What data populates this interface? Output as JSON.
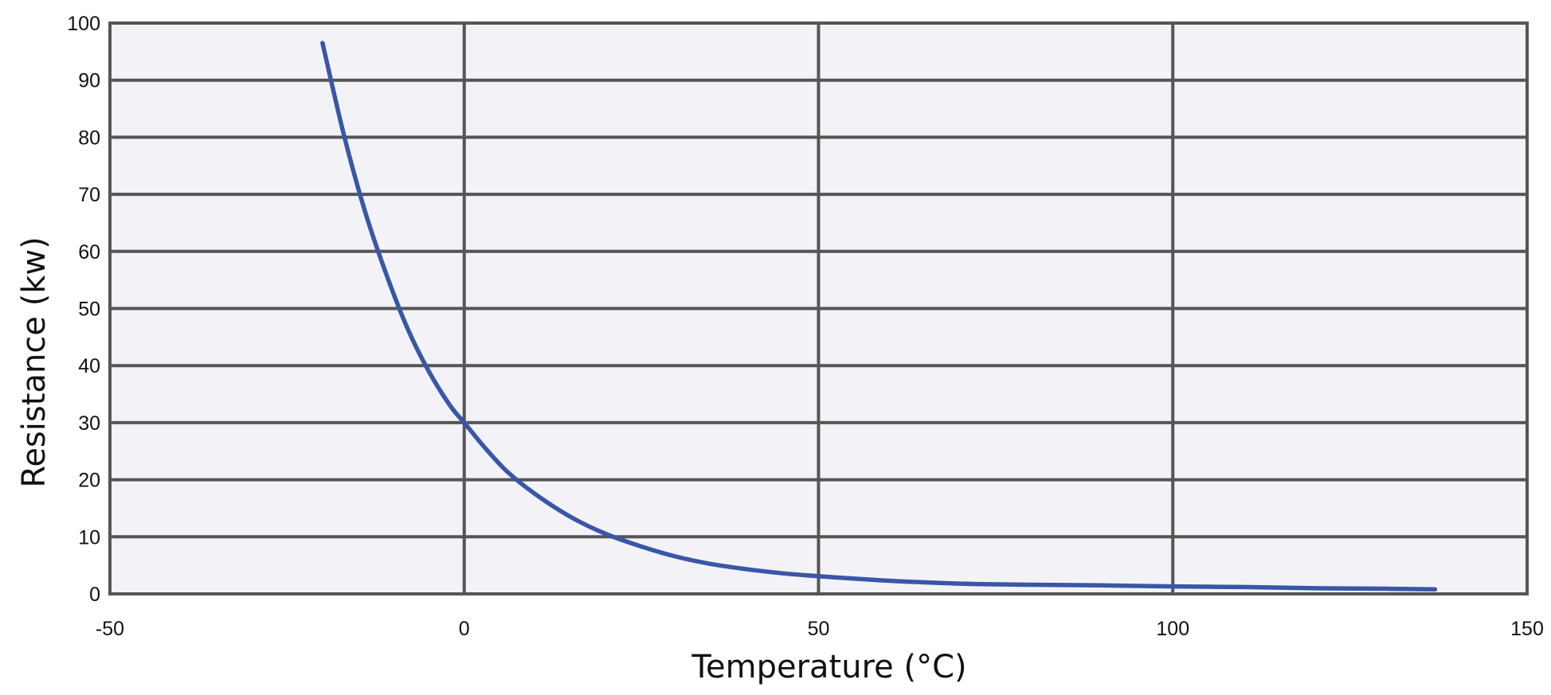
{
  "chart_data": {
    "type": "line",
    "title": "",
    "xlabel": "Temperature (°C)",
    "ylabel": "Resistance (kw)",
    "xlim": [
      -50,
      150
    ],
    "ylim": [
      0,
      100
    ],
    "x_ticks": [
      "-50",
      "0",
      "50",
      "100",
      "150"
    ],
    "y_ticks": [
      "0",
      "10",
      "20",
      "30",
      "40",
      "50",
      "60",
      "70",
      "80",
      "90",
      "100"
    ],
    "grid": true,
    "plot_background": "#f3f3f7",
    "grid_color": "#555555",
    "series": [
      {
        "name": "Resistance",
        "color": "#3a56a8",
        "x": [
          -20,
          -17,
          -14,
          -11,
          -8,
          -5,
          -2,
          0,
          3,
          6,
          10,
          15,
          20,
          25,
          30,
          35,
          40,
          45,
          50,
          60,
          70,
          80,
          90,
          100,
          110,
          120,
          130,
          137
        ],
        "y": [
          96.5,
          80.5,
          67,
          56,
          46.5,
          39,
          33,
          30,
          25.5,
          21.5,
          17.5,
          13.5,
          10.5,
          8.3,
          6.5,
          5.2,
          4.3,
          3.6,
          3.1,
          2.3,
          1.8,
          1.6,
          1.5,
          1.3,
          1.2,
          1.0,
          0.9,
          0.8
        ]
      }
    ]
  }
}
